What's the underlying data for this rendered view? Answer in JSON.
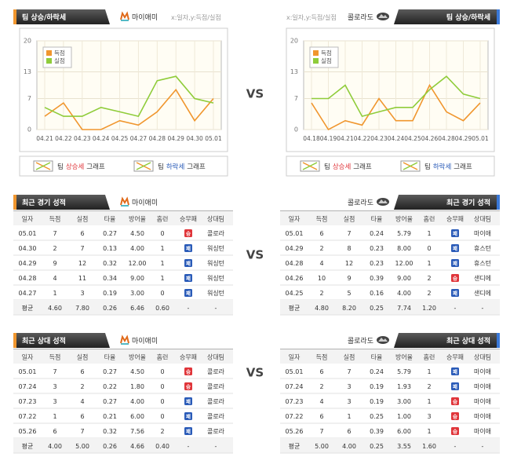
{
  "chart_data": [
    {
      "type": "line",
      "title": "팀 상승/하락세",
      "team": "마이애미",
      "subtitle": "x:일자,y:득점/실점",
      "categories": [
        "04.21",
        "04.22",
        "04.23",
        "04.24",
        "04.25",
        "04.27",
        "04.28",
        "04.29",
        "04.30",
        "05.01"
      ],
      "series": [
        {
          "name": "득점",
          "color": "#f0962e",
          "values": [
            3,
            6,
            0,
            0,
            2,
            1,
            4,
            9,
            2,
            7
          ]
        },
        {
          "name": "실점",
          "color": "#8fcc3a",
          "values": [
            5,
            3,
            3,
            5,
            4,
            3,
            11,
            12,
            7,
            6
          ]
        }
      ],
      "ylim": [
        0,
        20
      ],
      "yticks": [
        0,
        7,
        13,
        20
      ],
      "grid": true,
      "legend_position": "upper-left",
      "footer": [
        {
          "team": "팀",
          "trend": "상승세",
          "graph": "그래프",
          "trend_color": "#e0353a"
        },
        {
          "team": "팀",
          "trend": "하락세",
          "graph": "그래프",
          "trend_color": "#2a5bb8"
        }
      ]
    },
    {
      "type": "line",
      "title": "팀 상승/하락세",
      "team": "콜로라도",
      "subtitle": "x:일자,y:득점/실점",
      "categories": [
        "04.18",
        "04.19",
        "04.21",
        "04.22",
        "04.23",
        "04.24",
        "04.25",
        "04.26",
        "04.28",
        "04.29",
        "05.01"
      ],
      "series": [
        {
          "name": "득점",
          "color": "#f0962e",
          "values": [
            6,
            0,
            2,
            1,
            7,
            2,
            2,
            10,
            4,
            2,
            6
          ]
        },
        {
          "name": "실점",
          "color": "#8fcc3a",
          "values": [
            7,
            7,
            10,
            3,
            4,
            5,
            5,
            9,
            12,
            8,
            7
          ]
        }
      ],
      "ylim": [
        0,
        20
      ],
      "yticks": [
        0,
        7,
        13,
        20
      ],
      "grid": true,
      "legend_position": "upper-left",
      "footer": [
        {
          "team": "팀",
          "trend": "상승세",
          "graph": "그래프",
          "trend_color": "#e0353a"
        },
        {
          "team": "팀",
          "trend": "하락세",
          "graph": "그래프",
          "trend_color": "#2a5bb8"
        }
      ]
    }
  ],
  "vs_labels": [
    "VS",
    "VS",
    "VS"
  ],
  "result_colors": {
    "승": "#e0353a",
    "패": "#2a5bb8"
  },
  "tables": [
    {
      "title": "최근 경기 성적",
      "team": "마이애미",
      "columns": [
        "일자",
        "득점",
        "실점",
        "타율",
        "방어율",
        "홈런",
        "승무패",
        "상대팀"
      ],
      "rows": [
        [
          "05.01",
          "7",
          "6",
          "0.27",
          "4.50",
          "0",
          "승",
          "콜로라"
        ],
        [
          "04.30",
          "2",
          "7",
          "0.13",
          "4.00",
          "1",
          "패",
          "워싱턴"
        ],
        [
          "04.29",
          "9",
          "12",
          "0.32",
          "12.00",
          "1",
          "패",
          "워싱턴"
        ],
        [
          "04.28",
          "4",
          "11",
          "0.34",
          "9.00",
          "1",
          "패",
          "워싱턴"
        ],
        [
          "04.27",
          "1",
          "3",
          "0.19",
          "3.00",
          "0",
          "패",
          "워싱턴"
        ],
        [
          "평균",
          "4.60",
          "7.80",
          "0.26",
          "6.46",
          "0.60",
          "-",
          "-"
        ]
      ]
    },
    {
      "title": "최근 경기 성적",
      "team": "콜로라도",
      "columns": [
        "일자",
        "득점",
        "실점",
        "타율",
        "방어율",
        "홈런",
        "승무패",
        "상대팀"
      ],
      "rows": [
        [
          "05.01",
          "6",
          "7",
          "0.24",
          "5.79",
          "1",
          "패",
          "마이애"
        ],
        [
          "04.29",
          "2",
          "8",
          "0.23",
          "8.00",
          "0",
          "패",
          "휴스턴"
        ],
        [
          "04.28",
          "4",
          "12",
          "0.23",
          "12.00",
          "1",
          "패",
          "휴스턴"
        ],
        [
          "04.26",
          "10",
          "9",
          "0.39",
          "9.00",
          "2",
          "승",
          "샌디에"
        ],
        [
          "04.25",
          "2",
          "5",
          "0.16",
          "4.00",
          "2",
          "패",
          "샌디에"
        ],
        [
          "평균",
          "4.80",
          "8.20",
          "0.25",
          "7.74",
          "1.20",
          "-",
          "-"
        ]
      ]
    },
    {
      "title": "최근 상대 성적",
      "team": "마이애미",
      "columns": [
        "일자",
        "득점",
        "실점",
        "타율",
        "방어율",
        "홈런",
        "승무패",
        "상대팀"
      ],
      "rows": [
        [
          "05.01",
          "7",
          "6",
          "0.27",
          "4.50",
          "0",
          "승",
          "콜로라"
        ],
        [
          "07.24",
          "3",
          "2",
          "0.22",
          "1.80",
          "0",
          "승",
          "콜로라"
        ],
        [
          "07.23",
          "3",
          "4",
          "0.27",
          "4.00",
          "0",
          "패",
          "콜로라"
        ],
        [
          "07.22",
          "1",
          "6",
          "0.21",
          "6.00",
          "0",
          "패",
          "콜로라"
        ],
        [
          "05.26",
          "6",
          "7",
          "0.32",
          "7.56",
          "2",
          "패",
          "콜로라"
        ],
        [
          "평균",
          "4.00",
          "5.00",
          "0.26",
          "4.66",
          "0.40",
          "-",
          "-"
        ]
      ]
    },
    {
      "title": "최근 상대 성적",
      "team": "콜로라도",
      "columns": [
        "일자",
        "득점",
        "실점",
        "타율",
        "방어율",
        "홈런",
        "승무패",
        "상대팀"
      ],
      "rows": [
        [
          "05.01",
          "6",
          "7",
          "0.24",
          "5.79",
          "1",
          "패",
          "마이애"
        ],
        [
          "07.24",
          "2",
          "3",
          "0.19",
          "1.93",
          "2",
          "패",
          "마이애"
        ],
        [
          "07.23",
          "4",
          "3",
          "0.19",
          "3.00",
          "1",
          "승",
          "마이애"
        ],
        [
          "07.22",
          "6",
          "1",
          "0.25",
          "1.00",
          "3",
          "승",
          "마이애"
        ],
        [
          "05.26",
          "7",
          "6",
          "0.39",
          "6.00",
          "1",
          "승",
          "마이애"
        ],
        [
          "평균",
          "5.00",
          "4.00",
          "0.25",
          "3.55",
          "1.60",
          "-",
          "-"
        ]
      ]
    }
  ]
}
